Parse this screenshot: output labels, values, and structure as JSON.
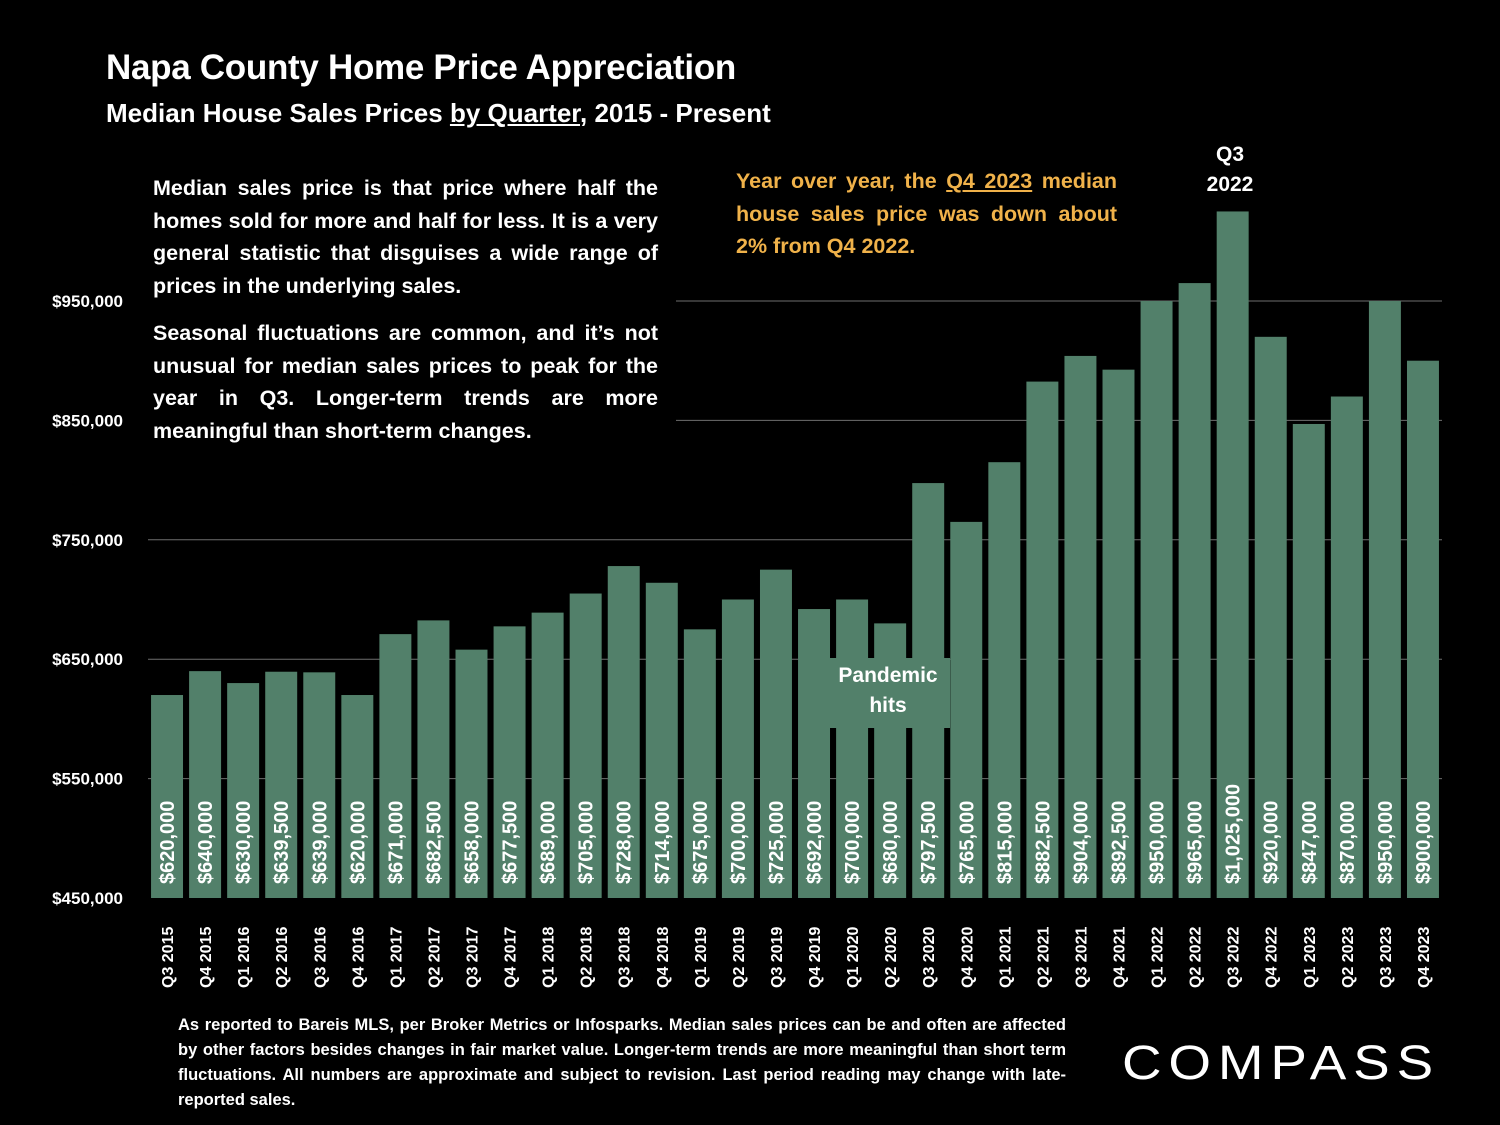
{
  "header": {
    "title": "Napa County Home Price Appreciation",
    "subtitle_pre": "Median House Sales Prices ",
    "subtitle_underlined": "by Quarter",
    "subtitle_post": ", 2015 - Present"
  },
  "notes": {
    "median_p1": "Median sales price is that price where half the homes sold for more and half for less. It is a very general statistic that disguises a wide range of prices in the underlying sales.",
    "median_p2": "Seasonal fluctuations are common, and it’s not unusual for median sales prices to peak for the year in Q3. Longer-term trends are more meaningful than short-term changes.",
    "yoy_pre": "Year over year, the ",
    "yoy_underlined": "Q4 2023",
    "yoy_post": " median house sales price was down about 2% from Q4 2022."
  },
  "annotations": {
    "q3_line1": "Q3",
    "q3_line2": "2022",
    "pandemic_line1": "Pandemic",
    "pandemic_line2": "hits"
  },
  "footnote": "As reported to Bareis MLS, per  Broker Metrics or Infosparks. Median sales prices can be and often are affected by other factors besides changes in fair market value. Longer-term trends are more meaningful than short term fluctuations. All numbers are approximate and subject to revision. Last period reading may change with late-reported sales.",
  "brand": {
    "logo_text": "COMPASS"
  },
  "colors": {
    "background": "#000000",
    "bar": "#52806a",
    "text": "#ffffff",
    "highlight": "#f0b24a",
    "grid": "#6e6e6e"
  },
  "chart_data": {
    "type": "bar",
    "title": "Napa County Home Price Appreciation",
    "subtitle": "Median House Sales Prices by Quarter, 2015 - Present",
    "xlabel": "",
    "ylabel": "",
    "ylim": [
      450000,
      1050000
    ],
    "yticks": [
      450000,
      550000,
      650000,
      750000,
      850000,
      950000
    ],
    "ytick_labels": [
      "$450,000",
      "$550,000",
      "$650,000",
      "$750,000",
      "$850,000",
      "$950,000"
    ],
    "grid": true,
    "categories": [
      "Q3 2015",
      "Q4 2015",
      "Q1 2016",
      "Q2 2016",
      "Q3 2016",
      "Q4 2016",
      "Q1 2017",
      "Q2 2017",
      "Q3 2017",
      "Q4 2017",
      "Q1 2018",
      "Q2 2018",
      "Q3 2018",
      "Q4 2018",
      "Q1 2019",
      "Q2 2019",
      "Q3 2019",
      "Q4 2019",
      "Q1 2020",
      "Q2 2020",
      "Q3 2020",
      "Q4 2020",
      "Q1 2021",
      "Q2 2021",
      "Q3 2021",
      "Q4 2021",
      "Q1 2022",
      "Q2 2022",
      "Q3 2022",
      "Q4 2022",
      "Q1 2023",
      "Q2 2023",
      "Q3 2023",
      "Q4 2023"
    ],
    "values": [
      620000,
      640000,
      630000,
      639500,
      639000,
      620000,
      671000,
      682500,
      658000,
      677500,
      689000,
      705000,
      728000,
      714000,
      675000,
      700000,
      725000,
      692000,
      700000,
      680000,
      797500,
      765000,
      815000,
      882500,
      904000,
      892500,
      950000,
      965000,
      1025000,
      920000,
      847000,
      870000,
      950000,
      900000
    ],
    "value_labels": [
      "$620,000",
      "$640,000",
      "$630,000",
      "$639,500",
      "$639,000",
      "$620,000",
      "$671,000",
      "$682,500",
      "$658,000",
      "$677,500",
      "$689,000",
      "$705,000",
      "$728,000",
      "$714,000",
      "$675,000",
      "$700,000",
      "$725,000",
      "$692,000",
      "$700,000",
      "$680,000",
      "$797,500",
      "$765,000",
      "$815,000",
      "$882,500",
      "$904,000",
      "$892,500",
      "$950,000",
      "$965,000",
      "$1,025,000",
      "$920,000",
      "$847,000",
      "$870,000",
      "$950,000",
      "$900,000"
    ]
  }
}
